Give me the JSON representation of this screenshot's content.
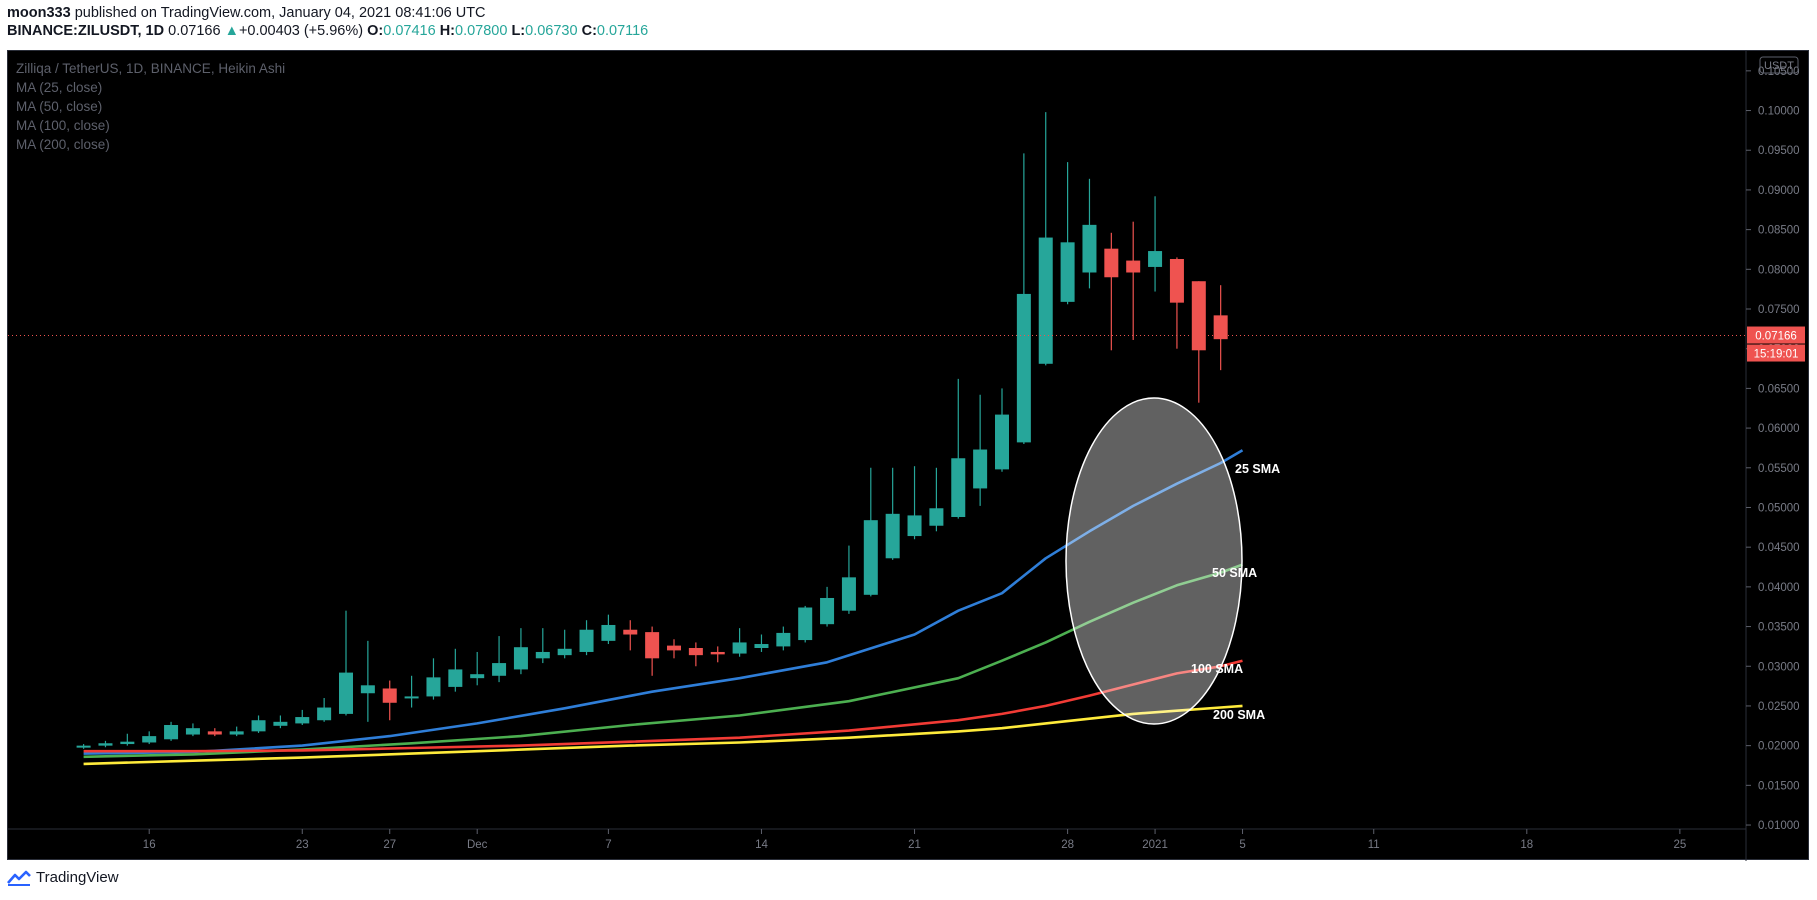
{
  "header": {
    "user": "moon333",
    "published": "published on TradingView.com, January 04, 2021 08:41:06 UTC",
    "symbol": "BINANCE:ZILUSDT, 1D",
    "last": "0.07166",
    "arrow": "▲",
    "change": "+0.00403 (+5.96%)",
    "o_label": "O:",
    "o": "0.07416",
    "h_label": "H:",
    "h": "0.07800",
    "l_label": "L:",
    "l": "0.06730",
    "c_label": "C:",
    "c": "0.07116"
  },
  "legend": {
    "title": "Zilliqa / TetherUS, 1D, BINANCE, Heikin Ashi",
    "ma25": "MA (25, close)",
    "ma50": "MA (50, close)",
    "ma100": "MA (100, close)",
    "ma200": "MA (200, close)"
  },
  "price_axis": {
    "currency": "USDT",
    "last_price": "0.07166",
    "countdown": "15:19:01"
  },
  "annotations": {
    "sma25": "25 SMA",
    "sma50": "50 SMA",
    "sma100": "100 SMA",
    "sma200": "200 SMA"
  },
  "footer": {
    "brand": "TradingView"
  },
  "colors": {
    "up": "#26a69a",
    "down": "#ef5350",
    "ma25": "#2f7ed8",
    "ma50": "#4caf50",
    "ma100": "#f23b35",
    "ma200": "#ffeb3b",
    "background": "#000000"
  },
  "chart_data": {
    "type": "candlestick",
    "title": "Zilliqa / TetherUS, 1D, BINANCE, Heikin Ashi",
    "ylim": [
      0.0095,
      0.1075
    ],
    "yticks": [
      "0.01000",
      "0.01500",
      "0.02000",
      "0.02500",
      "0.03000",
      "0.03500",
      "0.04000",
      "0.04500",
      "0.05000",
      "0.05500",
      "0.06000",
      "0.06500",
      "0.07000",
      "0.07500",
      "0.08000",
      "0.08500",
      "0.09000",
      "0.09500",
      "0.10000",
      "0.10500"
    ],
    "xlim": [
      -3,
      72
    ],
    "xticks": [
      {
        "label": "16",
        "i": 3
      },
      {
        "label": "23",
        "i": 10
      },
      {
        "label": "27",
        "i": 14
      },
      {
        "label": "Dec",
        "i": 18
      },
      {
        "label": "7",
        "i": 24
      },
      {
        "label": "14",
        "i": 31
      },
      {
        "label": "21",
        "i": 38
      },
      {
        "label": "28",
        "i": 45
      },
      {
        "label": "2021",
        "i": 49
      },
      {
        "label": "5",
        "i": 53
      },
      {
        "label": "11",
        "i": 59
      },
      {
        "label": "18",
        "i": 66
      },
      {
        "label": "25",
        "i": 73
      }
    ],
    "candles": [
      [
        0.0198,
        0.02,
        0.0202,
        0.0196
      ],
      [
        0.02,
        0.0203,
        0.0206,
        0.0198
      ],
      [
        0.0202,
        0.0205,
        0.0215,
        0.02
      ],
      [
        0.0204,
        0.0212,
        0.0218,
        0.0202
      ],
      [
        0.0208,
        0.0226,
        0.023,
        0.0206
      ],
      [
        0.0214,
        0.0222,
        0.0228,
        0.0212
      ],
      [
        0.0218,
        0.0214,
        0.0222,
        0.0212
      ],
      [
        0.0214,
        0.0218,
        0.0224,
        0.0212
      ],
      [
        0.0218,
        0.0232,
        0.0238,
        0.0216
      ],
      [
        0.0225,
        0.023,
        0.0238,
        0.0222
      ],
      [
        0.0228,
        0.0236,
        0.0245,
        0.0226
      ],
      [
        0.0232,
        0.0248,
        0.026,
        0.023
      ],
      [
        0.024,
        0.0292,
        0.037,
        0.0238
      ],
      [
        0.0266,
        0.0276,
        0.0332,
        0.023
      ],
      [
        0.0272,
        0.0254,
        0.0282,
        0.0232
      ],
      [
        0.0262,
        0.0262,
        0.0288,
        0.0248
      ],
      [
        0.0262,
        0.0286,
        0.031,
        0.0258
      ],
      [
        0.0274,
        0.0296,
        0.0322,
        0.0268
      ],
      [
        0.0285,
        0.029,
        0.0318,
        0.0276
      ],
      [
        0.0288,
        0.0304,
        0.0338,
        0.028
      ],
      [
        0.0296,
        0.0324,
        0.0348,
        0.029
      ],
      [
        0.031,
        0.0318,
        0.0348,
        0.0304
      ],
      [
        0.0314,
        0.0322,
        0.0346,
        0.031
      ],
      [
        0.0318,
        0.0346,
        0.0358,
        0.0314
      ],
      [
        0.0332,
        0.0352,
        0.0365,
        0.0328
      ],
      [
        0.0346,
        0.034,
        0.0358,
        0.032
      ],
      [
        0.0343,
        0.031,
        0.035,
        0.0288
      ],
      [
        0.0326,
        0.032,
        0.0334,
        0.031
      ],
      [
        0.0323,
        0.0314,
        0.033,
        0.03
      ],
      [
        0.0318,
        0.0315,
        0.0325,
        0.0305
      ],
      [
        0.0316,
        0.033,
        0.0348,
        0.0312
      ],
      [
        0.0323,
        0.0328,
        0.034,
        0.0318
      ],
      [
        0.0325,
        0.0342,
        0.035,
        0.032
      ],
      [
        0.0333,
        0.0374,
        0.0376,
        0.033
      ],
      [
        0.0353,
        0.0386,
        0.04,
        0.035
      ],
      [
        0.037,
        0.0412,
        0.0452,
        0.0366
      ],
      [
        0.039,
        0.0484,
        0.055,
        0.0388
      ],
      [
        0.0436,
        0.0492,
        0.055,
        0.0434
      ],
      [
        0.0464,
        0.049,
        0.0552,
        0.046
      ],
      [
        0.0477,
        0.0499,
        0.055,
        0.047
      ],
      [
        0.0488,
        0.0562,
        0.0662,
        0.0486
      ],
      [
        0.0524,
        0.0573,
        0.0642,
        0.0502
      ],
      [
        0.0548,
        0.0617,
        0.065,
        0.0545
      ],
      [
        0.0582,
        0.0769,
        0.0946,
        0.058
      ],
      [
        0.0681,
        0.084,
        0.0998,
        0.0679
      ],
      [
        0.0759,
        0.0834,
        0.0935,
        0.0756
      ],
      [
        0.0796,
        0.0856,
        0.0914,
        0.0776
      ],
      [
        0.0826,
        0.079,
        0.0846,
        0.0698
      ],
      [
        0.0811,
        0.0796,
        0.086,
        0.0711
      ],
      [
        0.0803,
        0.0823,
        0.0892,
        0.0772
      ],
      [
        0.0813,
        0.0758,
        0.0815,
        0.07
      ],
      [
        0.0785,
        0.0698,
        0.0785,
        0.0632
      ],
      [
        0.0742,
        0.0712,
        0.078,
        0.0673
      ]
    ],
    "series": [
      {
        "name": "MA (25, close)",
        "points": [
          [
            0,
            0.019
          ],
          [
            5,
            0.0192
          ],
          [
            10,
            0.02
          ],
          [
            14,
            0.0212
          ],
          [
            18,
            0.0228
          ],
          [
            22,
            0.0247
          ],
          [
            26,
            0.0268
          ],
          [
            30,
            0.0285
          ],
          [
            34,
            0.0305
          ],
          [
            38,
            0.034
          ],
          [
            40,
            0.037
          ],
          [
            42,
            0.0392
          ],
          [
            44,
            0.0436
          ],
          [
            46,
            0.047
          ],
          [
            48,
            0.0502
          ],
          [
            50,
            0.053
          ],
          [
            52,
            0.0556
          ],
          [
            53,
            0.0572
          ]
        ]
      },
      {
        "name": "MA (50, close)",
        "points": [
          [
            0,
            0.0186
          ],
          [
            5,
            0.0189
          ],
          [
            10,
            0.0195
          ],
          [
            15,
            0.0203
          ],
          [
            20,
            0.0212
          ],
          [
            25,
            0.0226
          ],
          [
            30,
            0.0238
          ],
          [
            35,
            0.0256
          ],
          [
            40,
            0.0285
          ],
          [
            42,
            0.0307
          ],
          [
            44,
            0.033
          ],
          [
            46,
            0.0356
          ],
          [
            48,
            0.038
          ],
          [
            50,
            0.0402
          ],
          [
            52,
            0.0418
          ],
          [
            53,
            0.0428
          ]
        ]
      },
      {
        "name": "MA (100, close)",
        "points": [
          [
            0,
            0.0193
          ],
          [
            5,
            0.0193
          ],
          [
            10,
            0.0194
          ],
          [
            15,
            0.0197
          ],
          [
            20,
            0.02
          ],
          [
            25,
            0.0205
          ],
          [
            30,
            0.021
          ],
          [
            35,
            0.0219
          ],
          [
            40,
            0.0232
          ],
          [
            42,
            0.024
          ],
          [
            44,
            0.025
          ],
          [
            46,
            0.0263
          ],
          [
            48,
            0.0277
          ],
          [
            50,
            0.0291
          ],
          [
            52,
            0.03
          ],
          [
            53,
            0.0307
          ]
        ]
      },
      {
        "name": "MA (200, close)",
        "points": [
          [
            0,
            0.0177
          ],
          [
            5,
            0.0181
          ],
          [
            10,
            0.0185
          ],
          [
            15,
            0.019
          ],
          [
            20,
            0.0195
          ],
          [
            25,
            0.02
          ],
          [
            30,
            0.0204
          ],
          [
            35,
            0.021
          ],
          [
            40,
            0.0218
          ],
          [
            42,
            0.0222
          ],
          [
            44,
            0.0228
          ],
          [
            46,
            0.0234
          ],
          [
            48,
            0.024
          ],
          [
            50,
            0.0244
          ],
          [
            52,
            0.0248
          ],
          [
            53,
            0.025
          ]
        ]
      }
    ],
    "last_price": 0.07166
  }
}
